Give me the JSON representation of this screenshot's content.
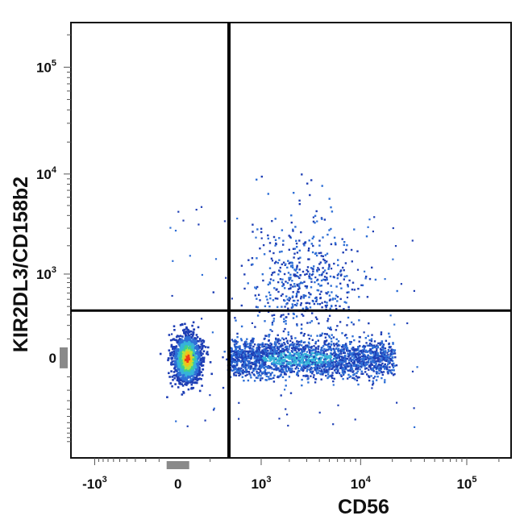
{
  "chart_data": {
    "type": "scatter",
    "xlabel": "CD56",
    "ylabel": "KIR2DL3/CD158b2",
    "xscale": "biexponential",
    "yscale": "biexponential",
    "xlim": [
      -1800,
      260000
    ],
    "ylim": [
      -1500,
      260000
    ],
    "x_ticks": [
      {
        "value": -1000,
        "base": "-10",
        "exp": "3"
      },
      {
        "value": 0,
        "base": "0",
        "exp": ""
      },
      {
        "value": 1000,
        "base": "10",
        "exp": "3"
      },
      {
        "value": 10000,
        "base": "10",
        "exp": "4"
      },
      {
        "value": 100000,
        "base": "10",
        "exp": "5"
      }
    ],
    "y_ticks": [
      {
        "value": 0,
        "base": "0",
        "exp": ""
      },
      {
        "value": 1000,
        "base": "10",
        "exp": "3"
      },
      {
        "value": 10000,
        "base": "10",
        "exp": "4"
      },
      {
        "value": 100000,
        "base": "10",
        "exp": "5"
      }
    ],
    "gates": {
      "x_threshold": 400,
      "y_threshold": 350
    },
    "density_colors": [
      "#1f3fb5",
      "#2e6fd6",
      "#36b3d9",
      "#3fcf8e",
      "#b7e23a",
      "#f2c21b",
      "#ee3a17"
    ],
    "populations": [
      {
        "name": "CD56- KIR-",
        "x_center": 40,
        "y_center": 0,
        "spread": "tight",
        "density": "high"
      },
      {
        "name": "CD56+ KIR-",
        "x_range": [
          400,
          20000
        ],
        "y_center": 0,
        "density": "medium"
      },
      {
        "name": "CD56+ KIR+",
        "x_range": [
          1000,
          8000
        ],
        "y_range": [
          350,
          4000
        ],
        "density": "low"
      }
    ]
  }
}
